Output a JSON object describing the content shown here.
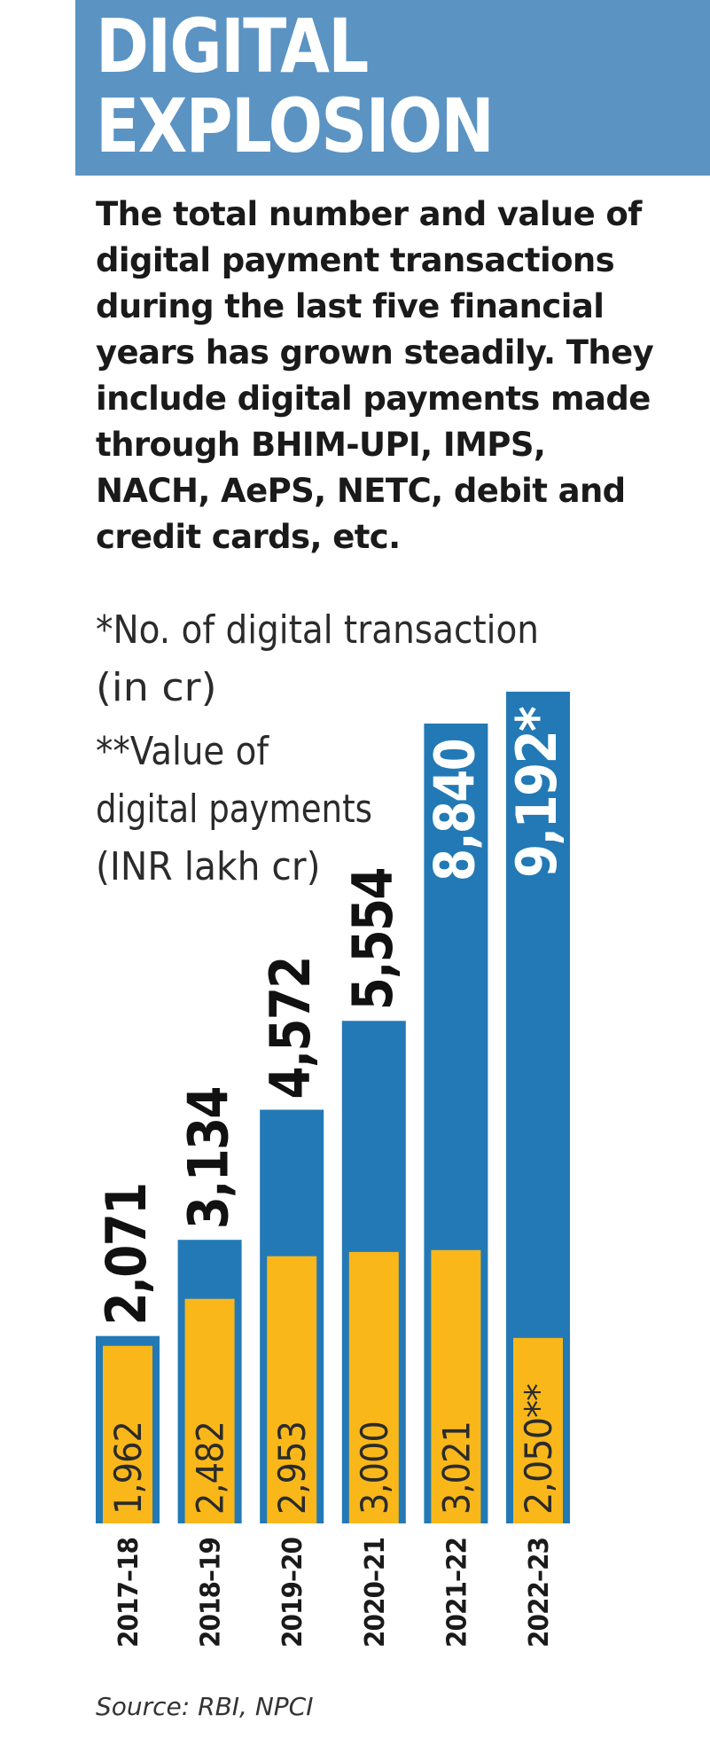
{
  "header": {
    "title_line_1": "DIGITAL",
    "title_line_2": "EXPLOSION",
    "band_color": "#5b93c3"
  },
  "subtitle": "The total number and value of digital payment transactions during the last five financial years has grown steadily. They include digital payments made through BHIM-UPI, IMPS, NACH, AePS, NETC, debit and credit cards, etc.",
  "source": "Source: RBI, NPCI",
  "chart_data": {
    "type": "bar",
    "categories": [
      "2017–18",
      "2018–19",
      "2019–20",
      "2020–21",
      "2021–22",
      "2022–23"
    ],
    "series": [
      {
        "name": "*No. of digital transaction (in cr)",
        "color": "#2279b5",
        "values": [
          2071,
          3134,
          4572,
          5554,
          8840,
          9192
        ],
        "labels": [
          "2,071",
          "3,134",
          "4,572",
          "5,554",
          "8,840",
          "9,192*"
        ]
      },
      {
        "name": "**Value of digital payments (INR lakh cr)",
        "color": "#f9b71a",
        "values": [
          1962,
          2482,
          2953,
          3000,
          3021,
          2050
        ],
        "labels": [
          "1,962",
          "2,482",
          "2,953",
          "3,000",
          "3,021",
          "2,050**"
        ]
      }
    ],
    "legend": {
      "lines": [
        "*No. of digital transaction",
        "(in cr)",
        "**Value of",
        "digital payments",
        "(INR lakh cr)"
      ],
      "placement": "top-left"
    },
    "ylim": [
      0,
      9800
    ],
    "grid": false
  }
}
